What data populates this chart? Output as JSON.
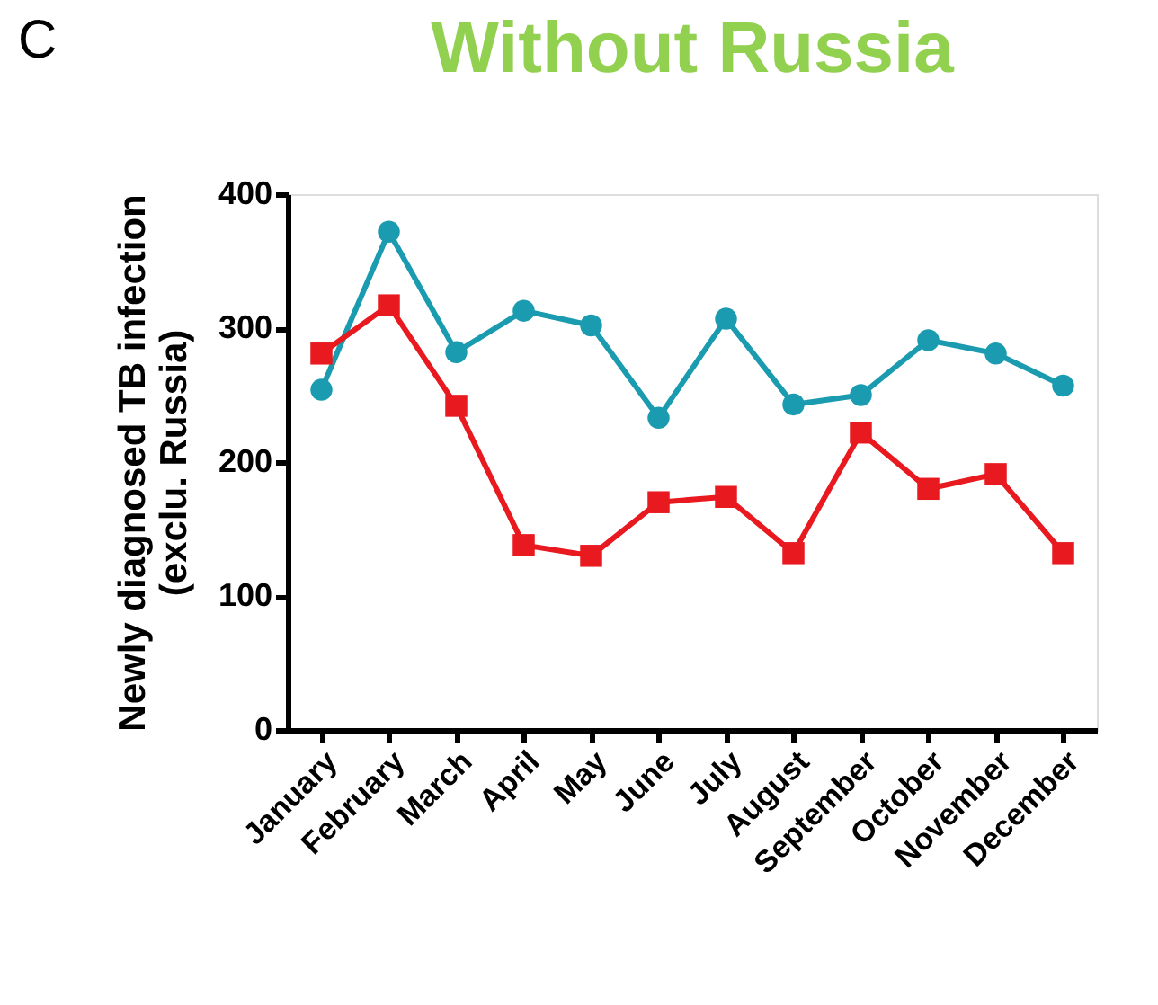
{
  "chart_data": {
    "type": "line",
    "title": "Without Russia",
    "ylabel": "Newly diagnosed TB infection\n(exclu. Russia)",
    "annotations": [
      "C"
    ],
    "categories": [
      "January",
      "February",
      "March",
      "April",
      "May",
      "June",
      "July",
      "August",
      "September",
      "October",
      "November",
      "December"
    ],
    "series": [
      {
        "color": "#1a9bb0",
        "marker": "circle",
        "values": [
          254,
          372,
          282,
          313,
          302,
          233,
          307,
          243,
          250,
          291,
          281,
          257
        ]
      },
      {
        "color": "#e8191f",
        "marker": "square",
        "values": [
          281,
          317,
          242,
          138,
          130,
          170,
          174,
          132,
          222,
          180,
          191,
          132
        ]
      }
    ],
    "ylim": [
      0,
      400
    ],
    "yticks": [
      0,
      100,
      200,
      300,
      400
    ],
    "grid": false,
    "line_style": "solid"
  }
}
